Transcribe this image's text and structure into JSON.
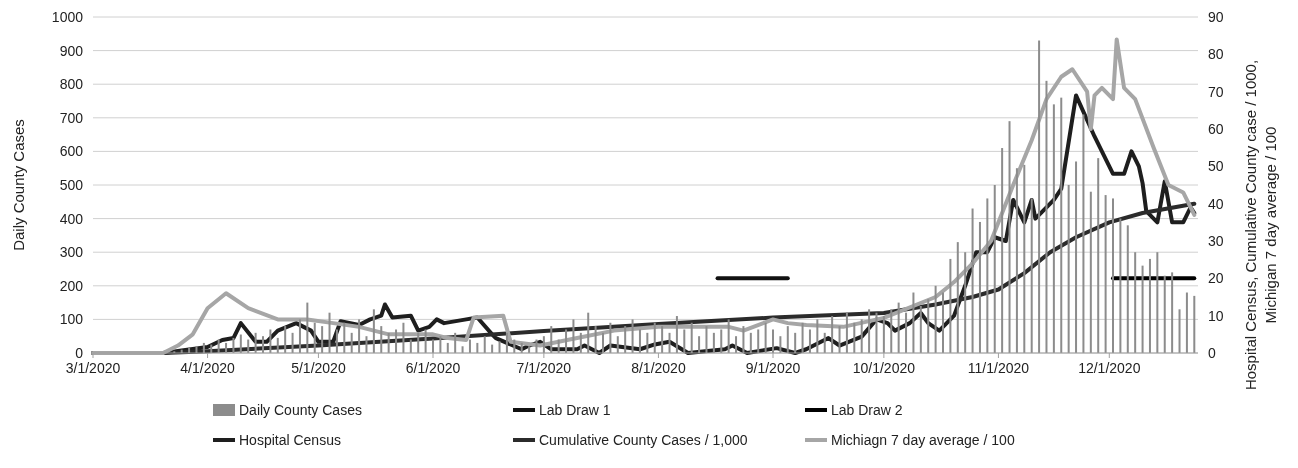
{
  "chart_data": {
    "type": "line",
    "xlabel": null,
    "ylabel": "Daily County Cases",
    "y2label": "Hospital Census, Cumulative County case / 1000, Michigan 7 day average / 100",
    "xlim": [
      "2020-03-01",
      "2020-12-25"
    ],
    "xticks": [
      {
        "value": "2020-03-01",
        "label": "3/1/2020"
      },
      {
        "value": "2020-04-01",
        "label": "4/1/2020"
      },
      {
        "value": "2020-05-01",
        "label": "5/1/2020"
      },
      {
        "value": "2020-06-01",
        "label": "6/1/2020"
      },
      {
        "value": "2020-07-01",
        "label": "7/1/2020"
      },
      {
        "value": "2020-08-01",
        "label": "8/1/2020"
      },
      {
        "value": "2020-09-01",
        "label": "9/1/2020"
      },
      {
        "value": "2020-10-01",
        "label": "10/1/2020"
      },
      {
        "value": "2020-11-01",
        "label": "11/1/2020"
      },
      {
        "value": "2020-12-01",
        "label": "12/1/2020"
      }
    ],
    "ylim": [
      0,
      1000
    ],
    "yticks": [
      0,
      100,
      200,
      300,
      400,
      500,
      600,
      700,
      800,
      900,
      1000
    ],
    "y2lim": [
      0,
      90
    ],
    "y2ticks": [
      0,
      10,
      20,
      30,
      40,
      50,
      60,
      70,
      80,
      90
    ],
    "grid": "y",
    "legend": "bottom",
    "series": [
      {
        "name": "Daily County Cases",
        "type": "bar",
        "color": "#8c8c8c",
        "x": [
          "2020-03-01",
          "2020-03-03",
          "2020-03-05",
          "2020-03-07",
          "2020-03-09",
          "2020-03-11",
          "2020-03-13",
          "2020-03-15",
          "2020-03-17",
          "2020-03-19",
          "2020-03-21",
          "2020-03-23",
          "2020-03-25",
          "2020-03-27",
          "2020-03-29",
          "2020-03-31",
          "2020-04-02",
          "2020-04-04",
          "2020-04-06",
          "2020-04-08",
          "2020-04-10",
          "2020-04-12",
          "2020-04-14",
          "2020-04-16",
          "2020-04-18",
          "2020-04-20",
          "2020-04-22",
          "2020-04-24",
          "2020-04-26",
          "2020-04-28",
          "2020-04-30",
          "2020-05-02",
          "2020-05-04",
          "2020-05-06",
          "2020-05-08",
          "2020-05-10",
          "2020-05-12",
          "2020-05-14",
          "2020-05-16",
          "2020-05-18",
          "2020-05-20",
          "2020-05-22",
          "2020-05-24",
          "2020-05-26",
          "2020-05-28",
          "2020-05-30",
          "2020-06-01",
          "2020-06-03",
          "2020-06-05",
          "2020-06-07",
          "2020-06-09",
          "2020-06-11",
          "2020-06-13",
          "2020-06-15",
          "2020-06-17",
          "2020-06-19",
          "2020-06-21",
          "2020-06-23",
          "2020-06-25",
          "2020-06-27",
          "2020-06-29",
          "2020-07-01",
          "2020-07-03",
          "2020-07-05",
          "2020-07-07",
          "2020-07-09",
          "2020-07-11",
          "2020-07-13",
          "2020-07-15",
          "2020-07-17",
          "2020-07-19",
          "2020-07-21",
          "2020-07-23",
          "2020-07-25",
          "2020-07-27",
          "2020-07-29",
          "2020-07-31",
          "2020-08-02",
          "2020-08-04",
          "2020-08-06",
          "2020-08-08",
          "2020-08-10",
          "2020-08-12",
          "2020-08-14",
          "2020-08-16",
          "2020-08-18",
          "2020-08-20",
          "2020-08-22",
          "2020-08-24",
          "2020-08-26",
          "2020-08-28",
          "2020-08-30",
          "2020-09-01",
          "2020-09-03",
          "2020-09-05",
          "2020-09-07",
          "2020-09-09",
          "2020-09-11",
          "2020-09-13",
          "2020-09-15",
          "2020-09-17",
          "2020-09-19",
          "2020-09-21",
          "2020-09-23",
          "2020-09-25",
          "2020-09-27",
          "2020-09-29",
          "2020-10-01",
          "2020-10-03",
          "2020-10-05",
          "2020-10-07",
          "2020-10-09",
          "2020-10-11",
          "2020-10-13",
          "2020-10-15",
          "2020-10-17",
          "2020-10-19",
          "2020-10-21",
          "2020-10-23",
          "2020-10-25",
          "2020-10-27",
          "2020-10-29",
          "2020-10-31",
          "2020-11-02",
          "2020-11-04",
          "2020-11-06",
          "2020-11-08",
          "2020-11-10",
          "2020-11-12",
          "2020-11-14",
          "2020-11-16",
          "2020-11-18",
          "2020-11-20",
          "2020-11-22",
          "2020-11-24",
          "2020-11-26",
          "2020-11-28",
          "2020-11-30",
          "2020-12-02",
          "2020-12-04",
          "2020-12-06",
          "2020-12-08",
          "2020-12-10",
          "2020-12-12",
          "2020-12-14",
          "2020-12-16",
          "2020-12-18",
          "2020-12-20",
          "2020-12-22",
          "2020-12-24"
        ],
        "values": [
          0,
          0,
          0,
          0,
          0,
          0,
          0,
          0,
          0,
          0,
          0,
          5,
          10,
          15,
          20,
          30,
          25,
          40,
          30,
          45,
          55,
          40,
          60,
          50,
          70,
          45,
          80,
          60,
          100,
          150,
          90,
          80,
          120,
          70,
          90,
          60,
          100,
          50,
          130,
          80,
          60,
          70,
          90,
          40,
          60,
          70,
          40,
          50,
          30,
          60,
          20,
          40,
          30,
          50,
          25,
          35,
          60,
          40,
          30,
          20,
          40,
          50,
          80,
          40,
          70,
          100,
          60,
          120,
          80,
          60,
          90,
          50,
          80,
          100,
          70,
          60,
          90,
          80,
          60,
          110,
          70,
          90,
          50,
          80,
          60,
          70,
          100,
          50,
          80,
          60,
          70,
          90,
          70,
          50,
          80,
          60,
          90,
          70,
          100,
          60,
          110,
          80,
          120,
          90,
          100,
          130,
          120,
          110,
          130,
          150,
          120,
          180,
          140,
          160,
          200,
          180,
          280,
          330,
          300,
          430,
          390,
          460,
          500,
          610,
          690,
          550,
          560,
          460,
          930,
          810,
          740,
          760,
          500,
          570,
          710,
          480,
          580,
          470,
          460,
          400,
          380,
          300,
          260,
          280,
          300,
          230,
          240,
          130,
          180,
          170
        ]
      },
      {
        "name": "Lab Draw 1",
        "axis": "y2",
        "color": "#111111",
        "x": [
          "2020-08-17",
          "2020-09-05"
        ],
        "values": [
          20,
          20
        ]
      },
      {
        "name": "Lab Draw 2",
        "axis": "y2",
        "color": "#000000",
        "x": [
          "2020-12-02",
          "2020-12-24"
        ],
        "values": [
          20,
          20
        ]
      },
      {
        "name": "Hospital Census",
        "axis": "y2",
        "color": "#1e1e1e",
        "x": [
          "2020-03-01",
          "2020-03-20",
          "2020-04-01",
          "2020-04-05",
          "2020-04-08",
          "2020-04-10",
          "2020-04-14",
          "2020-04-17",
          "2020-04-20",
          "2020-04-25",
          "2020-04-29",
          "2020-05-01",
          "2020-05-05",
          "2020-05-07",
          "2020-05-12",
          "2020-05-15",
          "2020-05-18",
          "2020-05-19",
          "2020-05-21",
          "2020-05-26",
          "2020-05-28",
          "2020-05-31",
          "2020-06-02",
          "2020-06-04",
          "2020-06-10",
          "2020-06-13",
          "2020-06-17",
          "2020-06-18",
          "2020-06-25",
          "2020-06-27",
          "2020-06-30",
          "2020-07-03",
          "2020-07-10",
          "2020-07-12",
          "2020-07-16",
          "2020-07-19",
          "2020-07-27",
          "2020-07-31",
          "2020-08-04",
          "2020-08-09",
          "2020-08-19",
          "2020-08-21",
          "2020-08-25",
          "2020-09-02",
          "2020-09-07",
          "2020-09-10",
          "2020-09-16",
          "2020-09-19",
          "2020-09-25",
          "2020-09-29",
          "2020-10-02",
          "2020-10-04",
          "2020-10-08",
          "2020-10-11",
          "2020-10-13",
          "2020-10-16",
          "2020-10-20",
          "2020-10-23",
          "2020-10-26",
          "2020-10-29",
          "2020-10-31",
          "2020-11-03",
          "2020-11-05",
          "2020-11-08",
          "2020-11-10",
          "2020-11-11",
          "2020-11-16",
          "2020-11-18",
          "2020-11-22",
          "2020-11-27",
          "2020-12-02",
          "2020-12-05",
          "2020-12-07",
          "2020-12-09",
          "2020-12-10",
          "2020-12-11",
          "2020-12-14",
          "2020-12-16",
          "2020-12-18",
          "2020-12-21",
          "2020-12-23",
          "2020-12-24"
        ],
        "values": [
          0,
          0,
          1.6,
          3.5,
          4,
          8,
          3,
          3,
          6,
          8,
          6,
          3,
          3,
          8.5,
          7.5,
          9,
          10,
          13,
          9.5,
          10,
          6,
          7,
          9,
          8,
          9,
          9.5,
          5,
          4,
          1,
          2,
          3,
          1,
          1,
          2,
          0,
          2,
          1,
          2.3,
          3,
          0,
          1,
          2,
          0,
          1.3,
          0,
          1,
          4,
          2,
          4.4,
          9,
          8,
          6,
          8,
          10.7,
          8,
          6,
          10,
          18,
          27,
          27,
          31,
          30,
          41,
          35,
          41,
          36,
          41,
          44,
          69,
          58,
          48,
          48,
          54,
          50,
          45.5,
          38,
          35,
          46,
          35,
          35,
          39,
          37.5
        ]
      },
      {
        "name": "Cumulative County Cases / 1,000",
        "axis": "y2",
        "color": "#2b2b2b",
        "x": [
          "2020-03-01",
          "2020-03-20",
          "2020-04-01",
          "2020-05-01",
          "2020-06-01",
          "2020-07-01",
          "2020-08-01",
          "2020-09-01",
          "2020-10-01",
          "2020-10-15",
          "2020-10-25",
          "2020-11-01",
          "2020-11-08",
          "2020-11-15",
          "2020-11-22",
          "2020-12-01",
          "2020-12-10",
          "2020-12-24"
        ],
        "values": [
          0,
          0,
          0.5,
          2,
          3.9,
          5.9,
          7.8,
          9.5,
          10.7,
          13,
          15,
          17,
          21.4,
          27,
          31,
          35,
          37.5,
          40
        ]
      },
      {
        "name": "Michiagn  7 day average / 100",
        "axis": "y2",
        "color": "#a6a6a6",
        "x": [
          "2020-03-01",
          "2020-03-20",
          "2020-03-24",
          "2020-03-28",
          "2020-04-01",
          "2020-04-06",
          "2020-04-12",
          "2020-04-20",
          "2020-04-28",
          "2020-05-05",
          "2020-05-12",
          "2020-05-20",
          "2020-06-01",
          "2020-06-05",
          "2020-06-10",
          "2020-06-12",
          "2020-06-20",
          "2020-06-22",
          "2020-06-30",
          "2020-07-10",
          "2020-07-20",
          "2020-08-01",
          "2020-08-10",
          "2020-08-20",
          "2020-08-24",
          "2020-09-01",
          "2020-09-05",
          "2020-09-10",
          "2020-09-20",
          "2020-10-01",
          "2020-10-15",
          "2020-10-20",
          "2020-10-25",
          "2020-10-30",
          "2020-11-05",
          "2020-11-10",
          "2020-11-14",
          "2020-11-18",
          "2020-11-21",
          "2020-11-25",
          "2020-11-26",
          "2020-11-27",
          "2020-11-29",
          "2020-12-02",
          "2020-12-03",
          "2020-12-05",
          "2020-12-08",
          "2020-12-13",
          "2020-12-17",
          "2020-12-21",
          "2020-12-24"
        ],
        "values": [
          0,
          0,
          2,
          5,
          12,
          16,
          12,
          9,
          9,
          8,
          7,
          5,
          5,
          4,
          3.5,
          9.5,
          10,
          3,
          2,
          4,
          6,
          7,
          7,
          7,
          6,
          9,
          8,
          7.5,
          7,
          9.4,
          15,
          19,
          24,
          30,
          45,
          57,
          68,
          74,
          76,
          70,
          60,
          69,
          71,
          68,
          84,
          71,
          68,
          55,
          45,
          43,
          37
        ]
      }
    ]
  }
}
